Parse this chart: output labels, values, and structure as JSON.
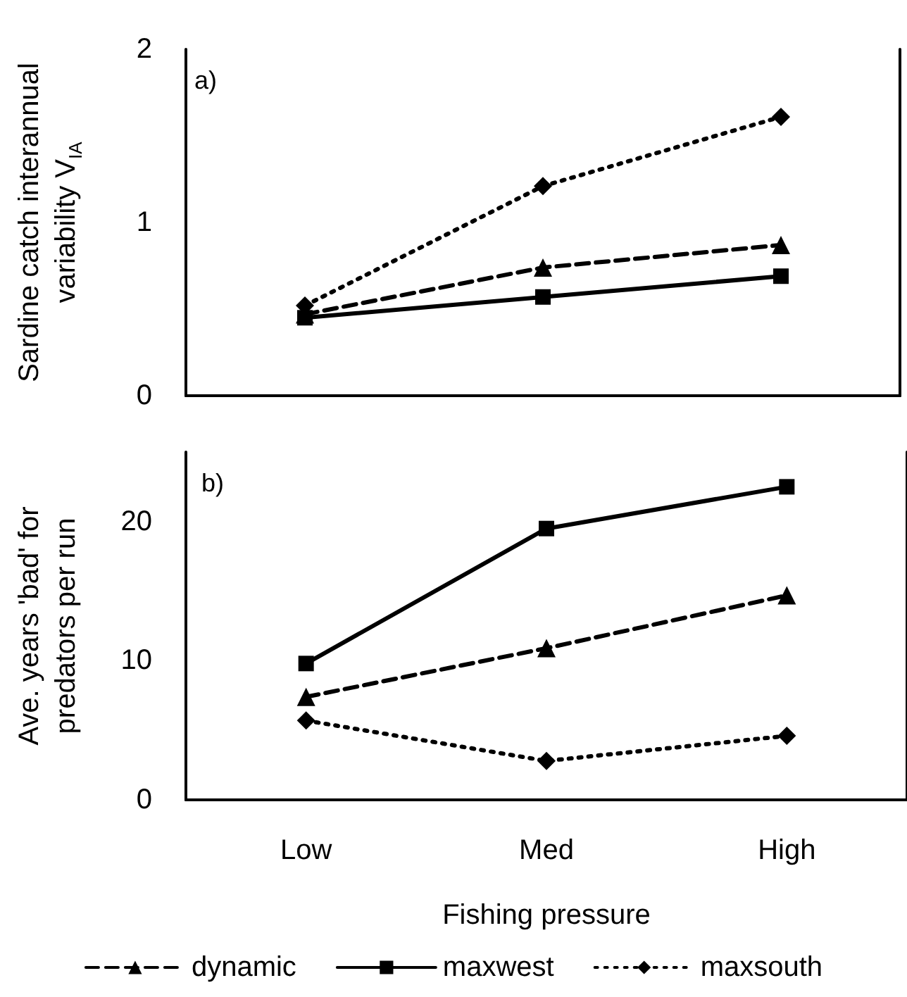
{
  "chart_data": [
    {
      "type": "line",
      "title": "a)",
      "ylabel": "Sardine catch interannual variability V$_{IA}$",
      "categories": [
        null,
        null,
        null
      ],
      "series": [
        {
          "color": "#000000",
          "marker": "triangle",
          "line_style": "dashed",
          "values": [
            0.47,
            0.74,
            0.87
          ]
        },
        {
          "color": "#000000",
          "marker": "square",
          "line_style": "solid",
          "values": [
            0.45,
            0.57,
            0.69
          ]
        },
        {
          "color": "#000000",
          "marker": "diamond",
          "line_style": "dotted",
          "values": [
            0.52,
            1.21,
            1.61
          ]
        }
      ],
      "ylim": [
        0,
        2
      ],
      "yticks": [
        0,
        1,
        2
      ],
      "grid": false,
      "legend": false,
      "tick_labels": "y"
    },
    {
      "type": "line",
      "title": "b)",
      "ylabel": "Ave. years 'bad' for predators per run",
      "xlabel": "Fishing pressure",
      "categories": [
        "Low",
        "Med",
        "High"
      ],
      "series": [
        {
          "name": "dynamic",
          "color": "#000000",
          "marker": "triangle",
          "line_style": "dashed",
          "values": [
            7.4,
            10.9,
            14.7
          ]
        },
        {
          "name": "maxwest",
          "color": "#000000",
          "marker": "square",
          "line_style": "solid",
          "values": [
            9.8,
            19.5,
            22.5
          ]
        },
        {
          "name": "maxsouth",
          "color": "#000000",
          "marker": "diamond",
          "line_style": "dotted",
          "values": [
            5.7,
            2.8,
            4.6
          ]
        }
      ],
      "ylim": [
        0,
        25
      ],
      "yticks": [
        0,
        10,
        20
      ],
      "grid": false,
      "legend": "bottom"
    }
  ]
}
